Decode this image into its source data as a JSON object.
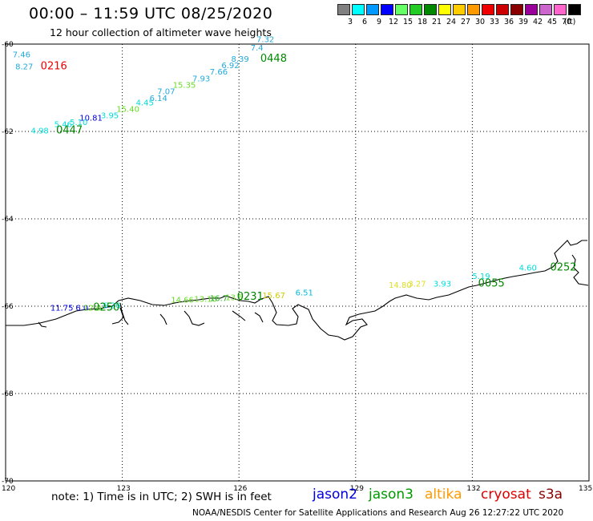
{
  "header": {
    "title": "00:00 – 11:59 UTC 08/25/2020",
    "subtitle": "12 hour collection of altimeter wave heights"
  },
  "legend": {
    "unit": "(ft)",
    "swatches": [
      {
        "color": "#808080",
        "label": "3"
      },
      {
        "color": "#00ffff",
        "label": "6"
      },
      {
        "color": "#0099ff",
        "label": "9"
      },
      {
        "color": "#0000ff",
        "label": "12"
      },
      {
        "color": "#66ff66",
        "label": "15"
      },
      {
        "color": "#22cc22",
        "label": "18"
      },
      {
        "color": "#008800",
        "label": "21"
      },
      {
        "color": "#ffff00",
        "label": "24"
      },
      {
        "color": "#ffcc00",
        "label": "27"
      },
      {
        "color": "#ff9900",
        "label": "30"
      },
      {
        "color": "#ee0000",
        "label": "33"
      },
      {
        "color": "#cc0000",
        "label": "36"
      },
      {
        "color": "#880000",
        "label": "39"
      },
      {
        "color": "#990099",
        "label": "42"
      },
      {
        "color": "#cc66cc",
        "label": "45"
      },
      {
        "color": "#ff66cc",
        "label": "70"
      },
      {
        "color": "#000000",
        "label": ""
      }
    ]
  },
  "axes": {
    "y_ticks": [
      "-60",
      "-62",
      "-64",
      "-66",
      "-68",
      "-70"
    ],
    "x_ticks": [
      "120",
      "123",
      "126",
      "129",
      "132",
      "135"
    ]
  },
  "observations": [
    {
      "text": "7.46",
      "color": "#22aadd",
      "lon": 120.18,
      "lat": -60.3
    },
    {
      "text": "8.27",
      "color": "#22aadd",
      "lon": 120.25,
      "lat": -60.58
    },
    {
      "text": "0216",
      "color": "#ee0000",
      "lon": 120.9,
      "lat": -60.58,
      "big": true
    },
    {
      "text": "7.32",
      "color": "#22aadd",
      "lon": 126.45,
      "lat": -59.95
    },
    {
      "text": "7.4",
      "color": "#22aadd",
      "lon": 126.3,
      "lat": -60.15
    },
    {
      "text": "0448",
      "color": "#008800",
      "lon": 126.55,
      "lat": -60.4,
      "big": true
    },
    {
      "text": "8.39",
      "color": "#22aadd",
      "lon": 125.8,
      "lat": -60.4
    },
    {
      "text": "6.92",
      "color": "#22aadd",
      "lon": 125.55,
      "lat": -60.55
    },
    {
      "text": "7.66",
      "color": "#22aadd",
      "lon": 125.25,
      "lat": -60.7
    },
    {
      "text": "7.93",
      "color": "#22aadd",
      "lon": 124.8,
      "lat": -60.85
    },
    {
      "text": "15.35",
      "color": "#66dd22",
      "lon": 124.3,
      "lat": -61.0
    },
    {
      "text": "7.07",
      "color": "#22aadd",
      "lon": 123.9,
      "lat": -61.15
    },
    {
      "text": "6.14",
      "color": "#22aadd",
      "lon": 123.7,
      "lat": -61.3
    },
    {
      "text": "4.45",
      "color": "#00dddd",
      "lon": 123.35,
      "lat": -61.4
    },
    {
      "text": "15.40",
      "color": "#66dd22",
      "lon": 122.85,
      "lat": -61.55
    },
    {
      "text": "3.95",
      "color": "#00dddd",
      "lon": 122.45,
      "lat": -61.7
    },
    {
      "text": "10.81",
      "color": "#0000dd",
      "lon": 121.9,
      "lat": -61.75
    },
    {
      "text": "5.10",
      "color": "#00dddd",
      "lon": 121.65,
      "lat": -61.85
    },
    {
      "text": "5.46",
      "color": "#00dddd",
      "lon": 121.25,
      "lat": -61.9
    },
    {
      "text": "4.98",
      "color": "#00dddd",
      "lon": 120.65,
      "lat": -62.05
    },
    {
      "text": "0447",
      "color": "#008800",
      "lon": 121.3,
      "lat": -62.05,
      "big": true
    },
    {
      "text": "11.75",
      "color": "#0000dd",
      "lon": 121.15,
      "lat": -66.1
    },
    {
      "text": "6.0",
      "color": "#0000dd",
      "lon": 121.8,
      "lat": -66.1
    },
    {
      "text": "12.0",
      "color": "#66dd22",
      "lon": 122.0,
      "lat": -66.1
    },
    {
      "text": "6.26",
      "color": "#00dddd",
      "lon": 122.5,
      "lat": -66.05
    },
    {
      "text": "0250",
      "color": "#008800",
      "lon": 122.25,
      "lat": -66.1,
      "big": true
    },
    {
      "text": "14.66",
      "color": "#66dd22",
      "lon": 124.25,
      "lat": -65.92
    },
    {
      "text": "13.10",
      "color": "#66dd22",
      "lon": 124.85,
      "lat": -65.9
    },
    {
      "text": "16.7",
      "color": "#22aa22",
      "lon": 125.25,
      "lat": -65.88
    },
    {
      "text": "13.5",
      "color": "#66dd22",
      "lon": 125.65,
      "lat": -65.86
    },
    {
      "text": "0231",
      "color": "#008800",
      "lon": 125.95,
      "lat": -65.85,
      "big": true
    },
    {
      "text": "15.67",
      "color": "#cccc00",
      "lon": 126.6,
      "lat": -65.82
    },
    {
      "text": "6.51",
      "color": "#00bbdd",
      "lon": 127.45,
      "lat": -65.75
    },
    {
      "text": "14.80",
      "color": "#dddd22",
      "lon": 129.85,
      "lat": -65.58
    },
    {
      "text": "3.27",
      "color": "#dddd22",
      "lon": 130.35,
      "lat": -65.55
    },
    {
      "text": "3.93",
      "color": "#00dddd",
      "lon": 131.0,
      "lat": -65.55
    },
    {
      "text": "5.19",
      "color": "#00dddd",
      "lon": 132.0,
      "lat": -65.38
    },
    {
      "text": "0055",
      "color": "#008800",
      "lon": 132.15,
      "lat": -65.55,
      "big": true
    },
    {
      "text": "4.60",
      "color": "#00dddd",
      "lon": 133.2,
      "lat": -65.18
    },
    {
      "text": "0252",
      "color": "#008800",
      "lon": 134.0,
      "lat": -65.18,
      "big": true
    }
  ],
  "footer": {
    "note": "note:  1) Time is in UTC;  2) SWH is in feet",
    "satellites": [
      {
        "name": "jason2",
        "color": "#0000dd"
      },
      {
        "name": "jason3",
        "color": "#009900"
      },
      {
        "name": "altika",
        "color": "#ff9900"
      },
      {
        "name": "cryosat",
        "color": "#dd0000"
      },
      {
        "name": "s3a",
        "color": "#880000"
      }
    ],
    "credit": "NOAA/NESDIS Center for Satellite Applications and Research    Aug 26 12:27:22 UTC 2020"
  }
}
